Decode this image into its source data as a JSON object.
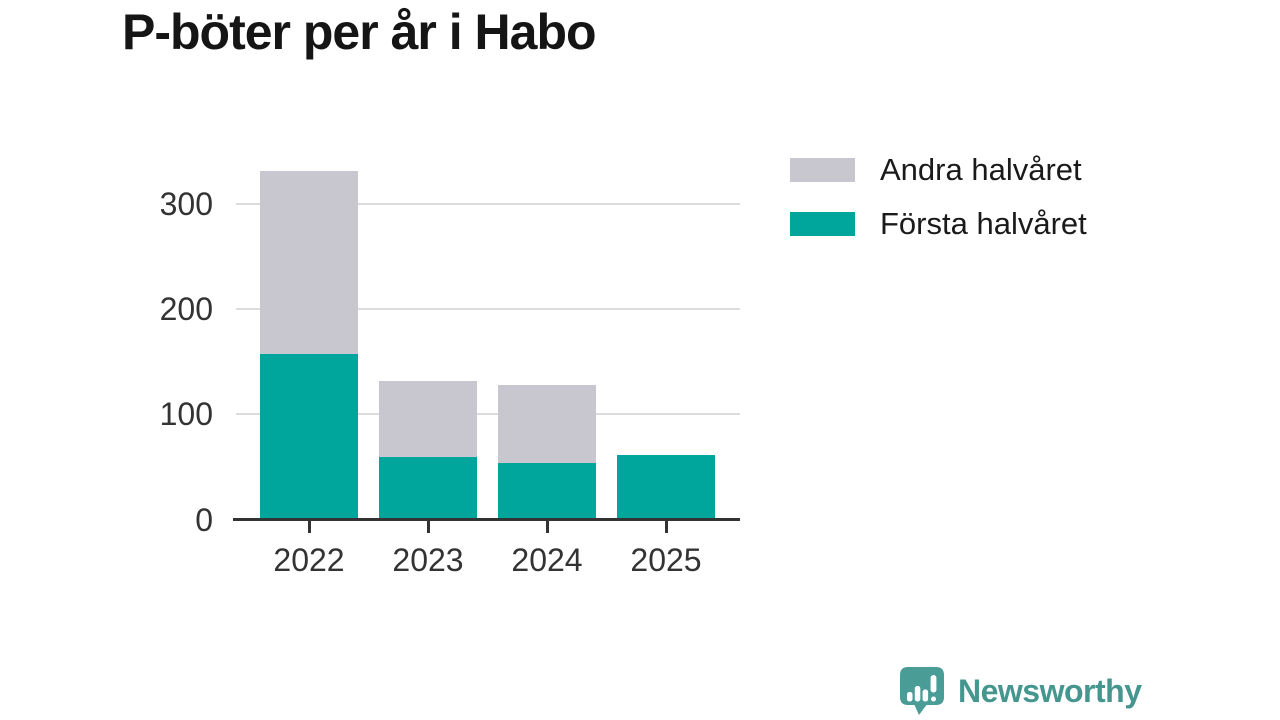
{
  "title": "P-böter per år i Habo",
  "legend": {
    "items": [
      {
        "label": "Andra halvåret",
        "color": "#c8c6cf"
      },
      {
        "label": "Första halvåret",
        "color": "#00a59b"
      }
    ]
  },
  "chart_data": {
    "type": "bar",
    "stacked": true,
    "title": "P-böter per år i Habo",
    "categories": [
      "2022",
      "2023",
      "2024",
      "2025"
    ],
    "series": [
      {
        "name": "Första halvåret",
        "color": "#00a59b",
        "values": [
          156,
          58,
          52,
          60
        ]
      },
      {
        "name": "Andra halvåret",
        "color": "#c8c6cf",
        "values": [
          174,
          72,
          74,
          0
        ]
      }
    ],
    "totals": [
      330,
      130,
      126,
      60
    ],
    "xlabel": "",
    "ylabel": "",
    "yticks": [
      0,
      100,
      200,
      300
    ],
    "ylim": [
      0,
      335
    ],
    "grid": true,
    "legend_position": "top-right"
  },
  "branding": {
    "logo_text": "Newsworthy",
    "logo_text_color": "#44968f",
    "icon_color": "#4a9c96"
  },
  "colors": {
    "background": "#ffffff",
    "title_text": "#151515",
    "axis_text": "#333333",
    "gridline": "#dcdcdc",
    "axis_line": "#333333"
  }
}
